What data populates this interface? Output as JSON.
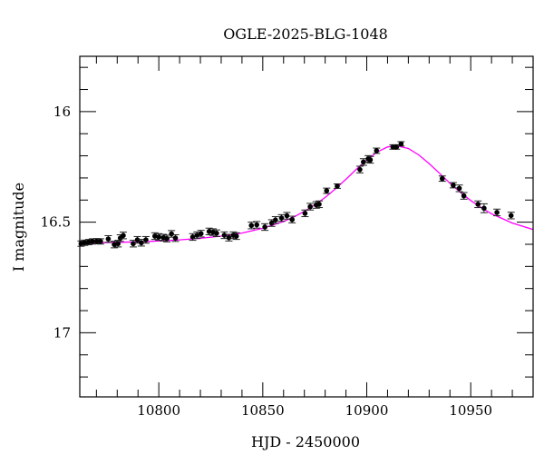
{
  "chart_data": {
    "type": "scatter",
    "title": "OGLE-2025-BLG-1048",
    "xlabel": "HJD - 2450000",
    "ylabel": "I magnitude",
    "xlim": [
      10762,
      10980
    ],
    "ylim": [
      15.75,
      17.29
    ],
    "y_inverted": true,
    "grid": false,
    "x_ticks": [
      10800,
      10850,
      10900,
      10950
    ],
    "x_tick_labels": [
      "10800",
      "10850",
      "10900",
      "10950"
    ],
    "y_ticks": [
      16,
      16.5,
      17
    ],
    "y_tick_labels": [
      "16",
      "16.5",
      "17"
    ],
    "series": [
      {
        "type": "scatter",
        "color": "#000000",
        "x": [
          10762.6,
          10764.3,
          10766.3,
          10768.1,
          10770.2,
          10772.0,
          10775.7,
          10778.6,
          10780.4,
          10781.5,
          10782.9,
          10787.7,
          10789.7,
          10791.6,
          10793.8,
          10798.1,
          10800.0,
          10802.2,
          10803.9,
          10806.1,
          10808.0,
          10816.3,
          10818.4,
          10820.3,
          10824.2,
          10826.1,
          10827.8,
          10831.5,
          10833.7,
          10835.8,
          10837.3,
          10844.5,
          10847.1,
          10851.0,
          10854.3,
          10856.1,
          10859.0,
          10861.6,
          10864.1,
          10870.3,
          10872.8,
          10875.7,
          10877.1,
          10880.7,
          10885.8,
          10896.7,
          10898.4,
          10900.7,
          10901.7,
          10904.7,
          10912.6,
          10914.3,
          10916.5,
          10936.3,
          10941.6,
          10944.5,
          10946.7,
          10953.5,
          10956.4,
          10962.6,
          10969.4
        ],
        "y": [
          16.597,
          16.593,
          16.59,
          16.587,
          16.586,
          16.587,
          16.576,
          16.601,
          16.597,
          16.572,
          16.56,
          16.597,
          16.58,
          16.593,
          16.58,
          16.563,
          16.567,
          16.57,
          16.574,
          16.553,
          16.572,
          16.567,
          16.559,
          16.552,
          16.542,
          16.545,
          16.55,
          16.559,
          16.57,
          16.559,
          16.563,
          16.515,
          16.512,
          16.522,
          16.504,
          16.49,
          16.481,
          16.471,
          16.488,
          16.46,
          16.43,
          16.422,
          16.419,
          16.358,
          16.337,
          16.262,
          16.228,
          16.214,
          16.218,
          16.177,
          16.16,
          16.16,
          16.146,
          16.303,
          16.333,
          16.347,
          16.381,
          16.419,
          16.437,
          16.456,
          16.47
        ],
        "err": [
          0.012,
          0.012,
          0.012,
          0.012,
          0.012,
          0.012,
          0.015,
          0.015,
          0.015,
          0.015,
          0.015,
          0.015,
          0.015,
          0.015,
          0.015,
          0.015,
          0.015,
          0.015,
          0.015,
          0.015,
          0.015,
          0.015,
          0.015,
          0.015,
          0.015,
          0.015,
          0.015,
          0.015,
          0.015,
          0.015,
          0.015,
          0.015,
          0.015,
          0.015,
          0.015,
          0.015,
          0.015,
          0.015,
          0.015,
          0.015,
          0.015,
          0.015,
          0.015,
          0.012,
          0.01,
          0.015,
          0.015,
          0.015,
          0.015,
          0.012,
          0.01,
          0.01,
          0.01,
          0.012,
          0.012,
          0.015,
          0.015,
          0.015,
          0.02,
          0.015,
          0.015
        ]
      },
      {
        "type": "line",
        "color": "#ff00ff",
        "x": [
          10760,
          10770,
          10780,
          10790,
          10800,
          10810,
          10820,
          10830,
          10840,
          10850,
          10860,
          10865,
          10870,
          10875,
          10880,
          10885,
          10890,
          10895,
          10900,
          10905,
          10910,
          10914,
          10920,
          10925,
          10930,
          10935,
          10940,
          10945,
          10950,
          10955,
          10960,
          10970,
          10980
        ],
        "y": [
          16.595,
          16.593,
          16.591,
          16.589,
          16.585,
          16.58,
          16.573,
          16.563,
          16.549,
          16.528,
          16.497,
          16.476,
          16.451,
          16.422,
          16.388,
          16.349,
          16.306,
          16.261,
          16.219,
          16.183,
          16.16,
          16.154,
          16.167,
          16.196,
          16.235,
          16.279,
          16.324,
          16.365,
          16.402,
          16.434,
          16.462,
          16.504,
          16.533
        ]
      }
    ]
  }
}
